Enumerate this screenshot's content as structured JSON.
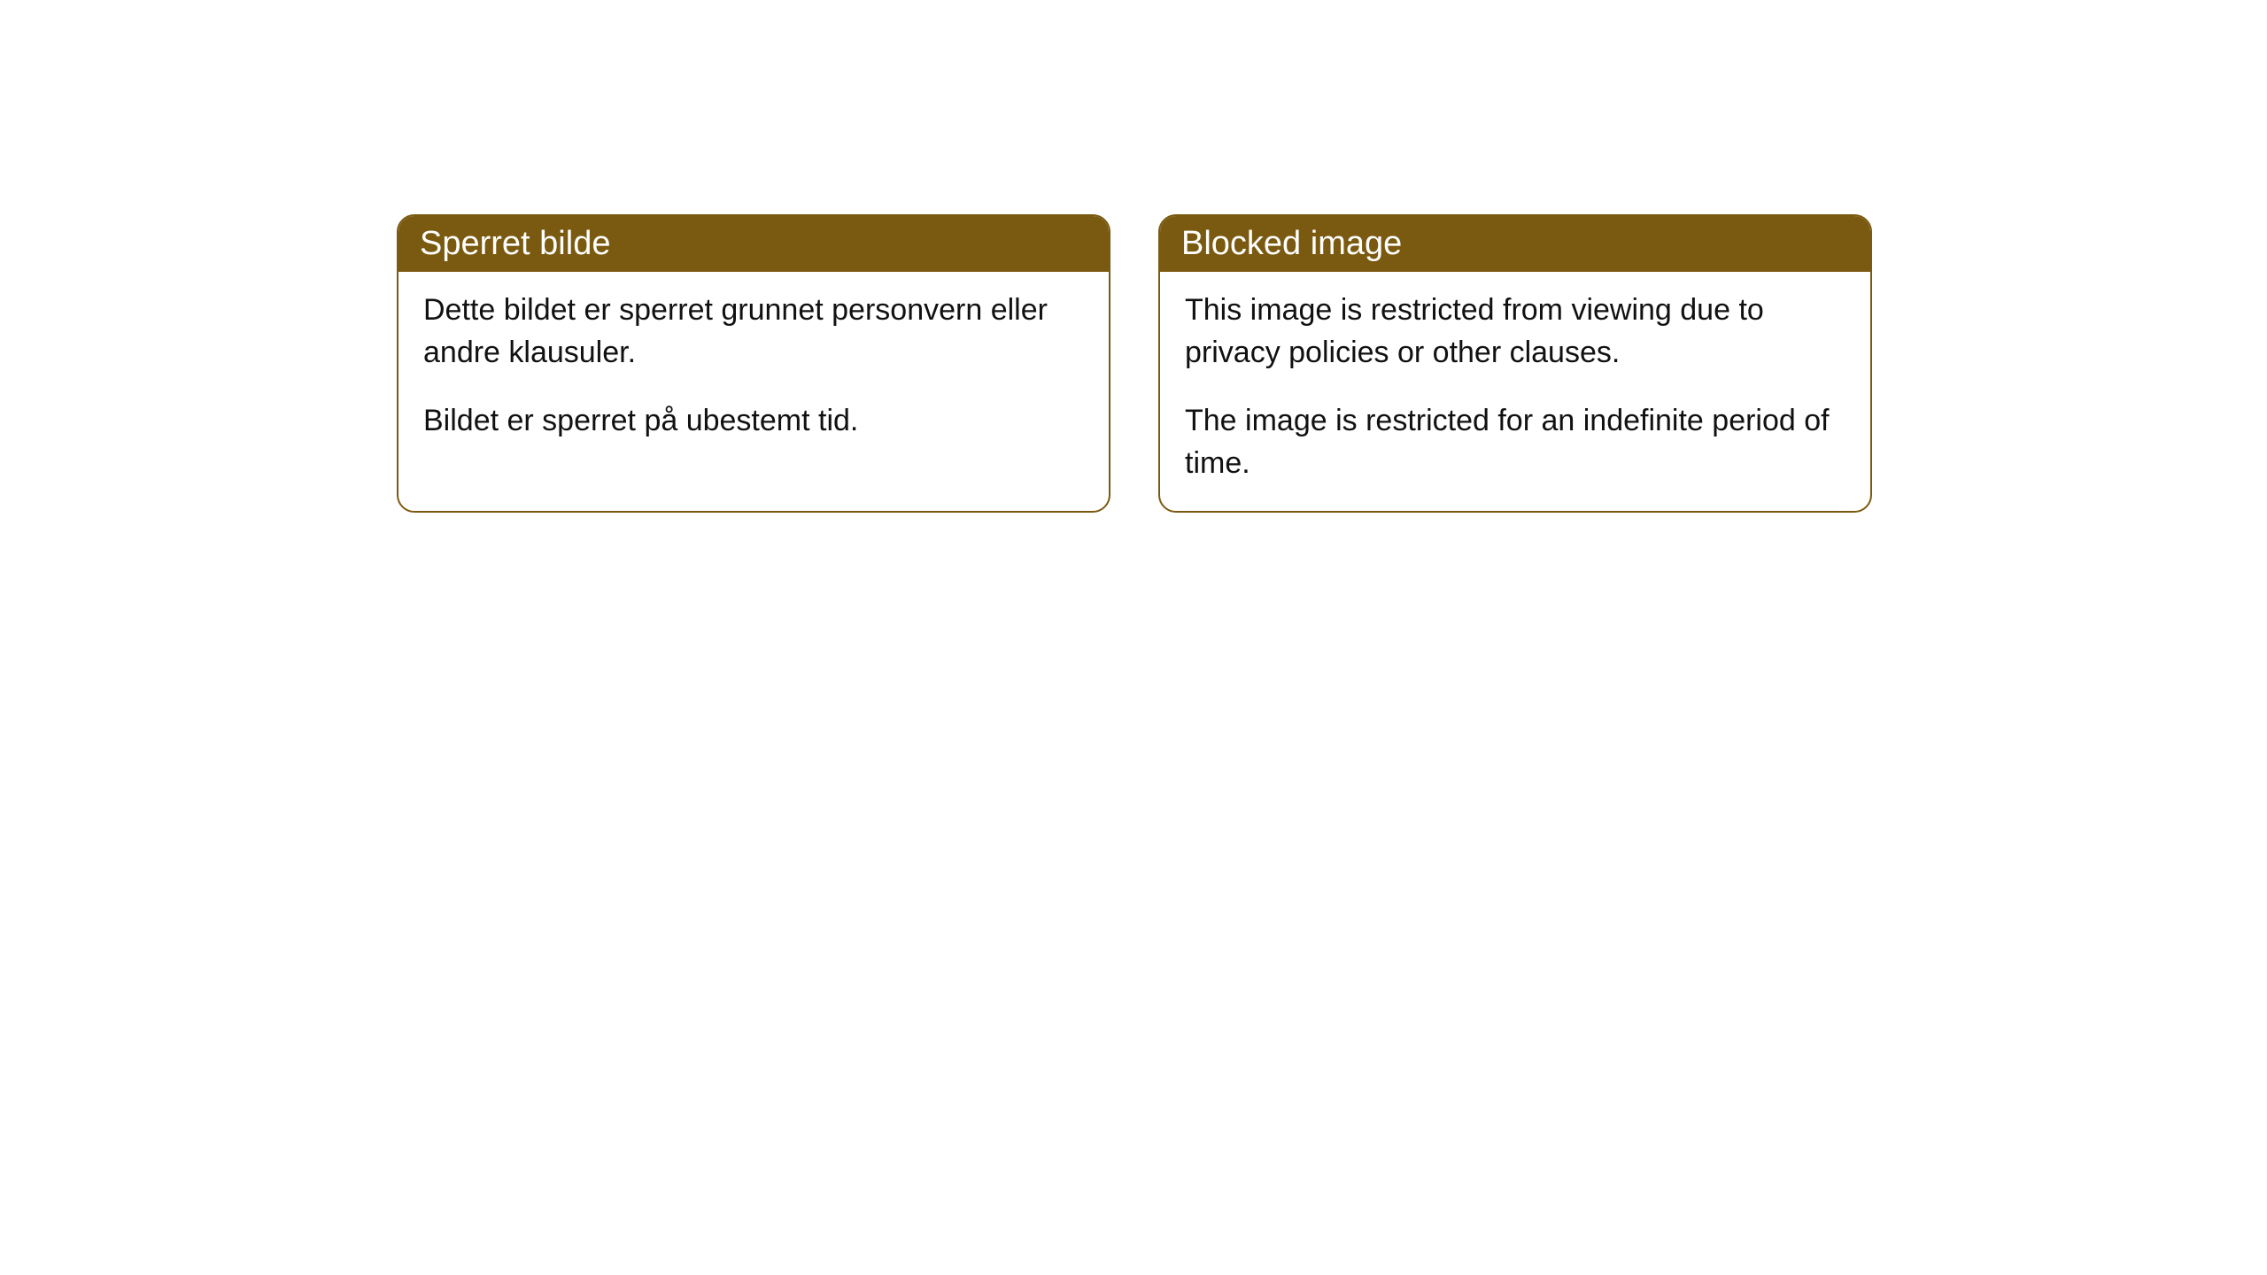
{
  "cards": [
    {
      "title": "Sperret bilde",
      "paragraph1": "Dette bildet er sperret grunnet personvern eller andre klausuler.",
      "paragraph2": "Bildet er sperret på ubestemt tid."
    },
    {
      "title": "Blocked image",
      "paragraph1": "This image is restricted from viewing due to privacy policies or other clauses.",
      "paragraph2": "The image is restricted for an indefinite period of time."
    }
  ],
  "styling": {
    "header_background": "#7a5a10",
    "header_text_color": "#ffffff",
    "body_text_color": "#111111",
    "card_border_color": "#7a5a10",
    "card_background": "#ffffff",
    "page_background": "#ffffff",
    "border_radius": 20,
    "header_fontsize": 38,
    "body_fontsize": 34
  }
}
